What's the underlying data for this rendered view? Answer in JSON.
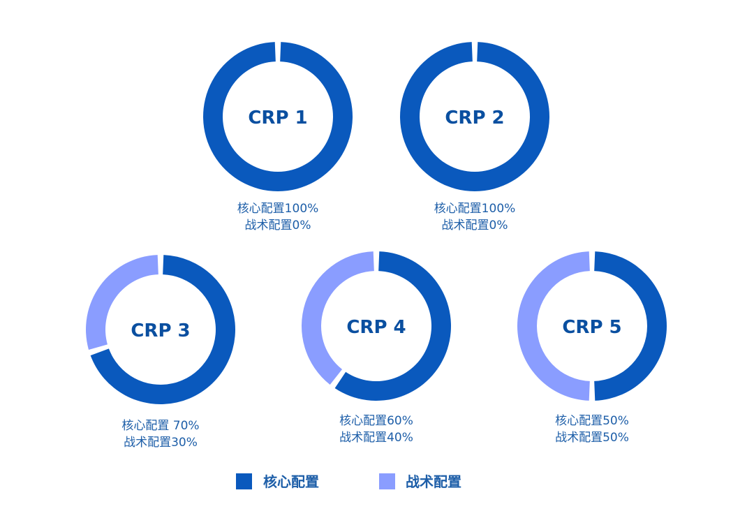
{
  "chart_data": {
    "type": "pie",
    "series_names": [
      "核心配置",
      "战术配置"
    ],
    "colors": {
      "core": "#0a59bd",
      "tactical": "#8a9dff"
    },
    "donuts": [
      {
        "title": "CRP 1",
        "values": [
          100,
          0
        ],
        "caption": [
          "核心配置100%",
          "战术配置0%"
        ]
      },
      {
        "title": "CRP 2",
        "values": [
          100,
          0
        ],
        "caption": [
          "核心配置100%",
          "战术配置0%"
        ]
      },
      {
        "title": "CRP 3",
        "values": [
          70,
          30
        ],
        "caption": [
          "核心配置 70%",
          "战术配置30%"
        ]
      },
      {
        "title": "CRP 4",
        "values": [
          60,
          40
        ],
        "caption": [
          "核心配置60%",
          "战术配置40%"
        ]
      },
      {
        "title": "CRP 5",
        "values": [
          50,
          50
        ],
        "caption": [
          "核心配置50%",
          "战术配置50%"
        ]
      }
    ],
    "legend": [
      {
        "label": "核心配置",
        "color": "#0a59bd"
      },
      {
        "label": "战术配置",
        "color": "#8a9dff"
      }
    ],
    "legend_placement": "bottom"
  }
}
